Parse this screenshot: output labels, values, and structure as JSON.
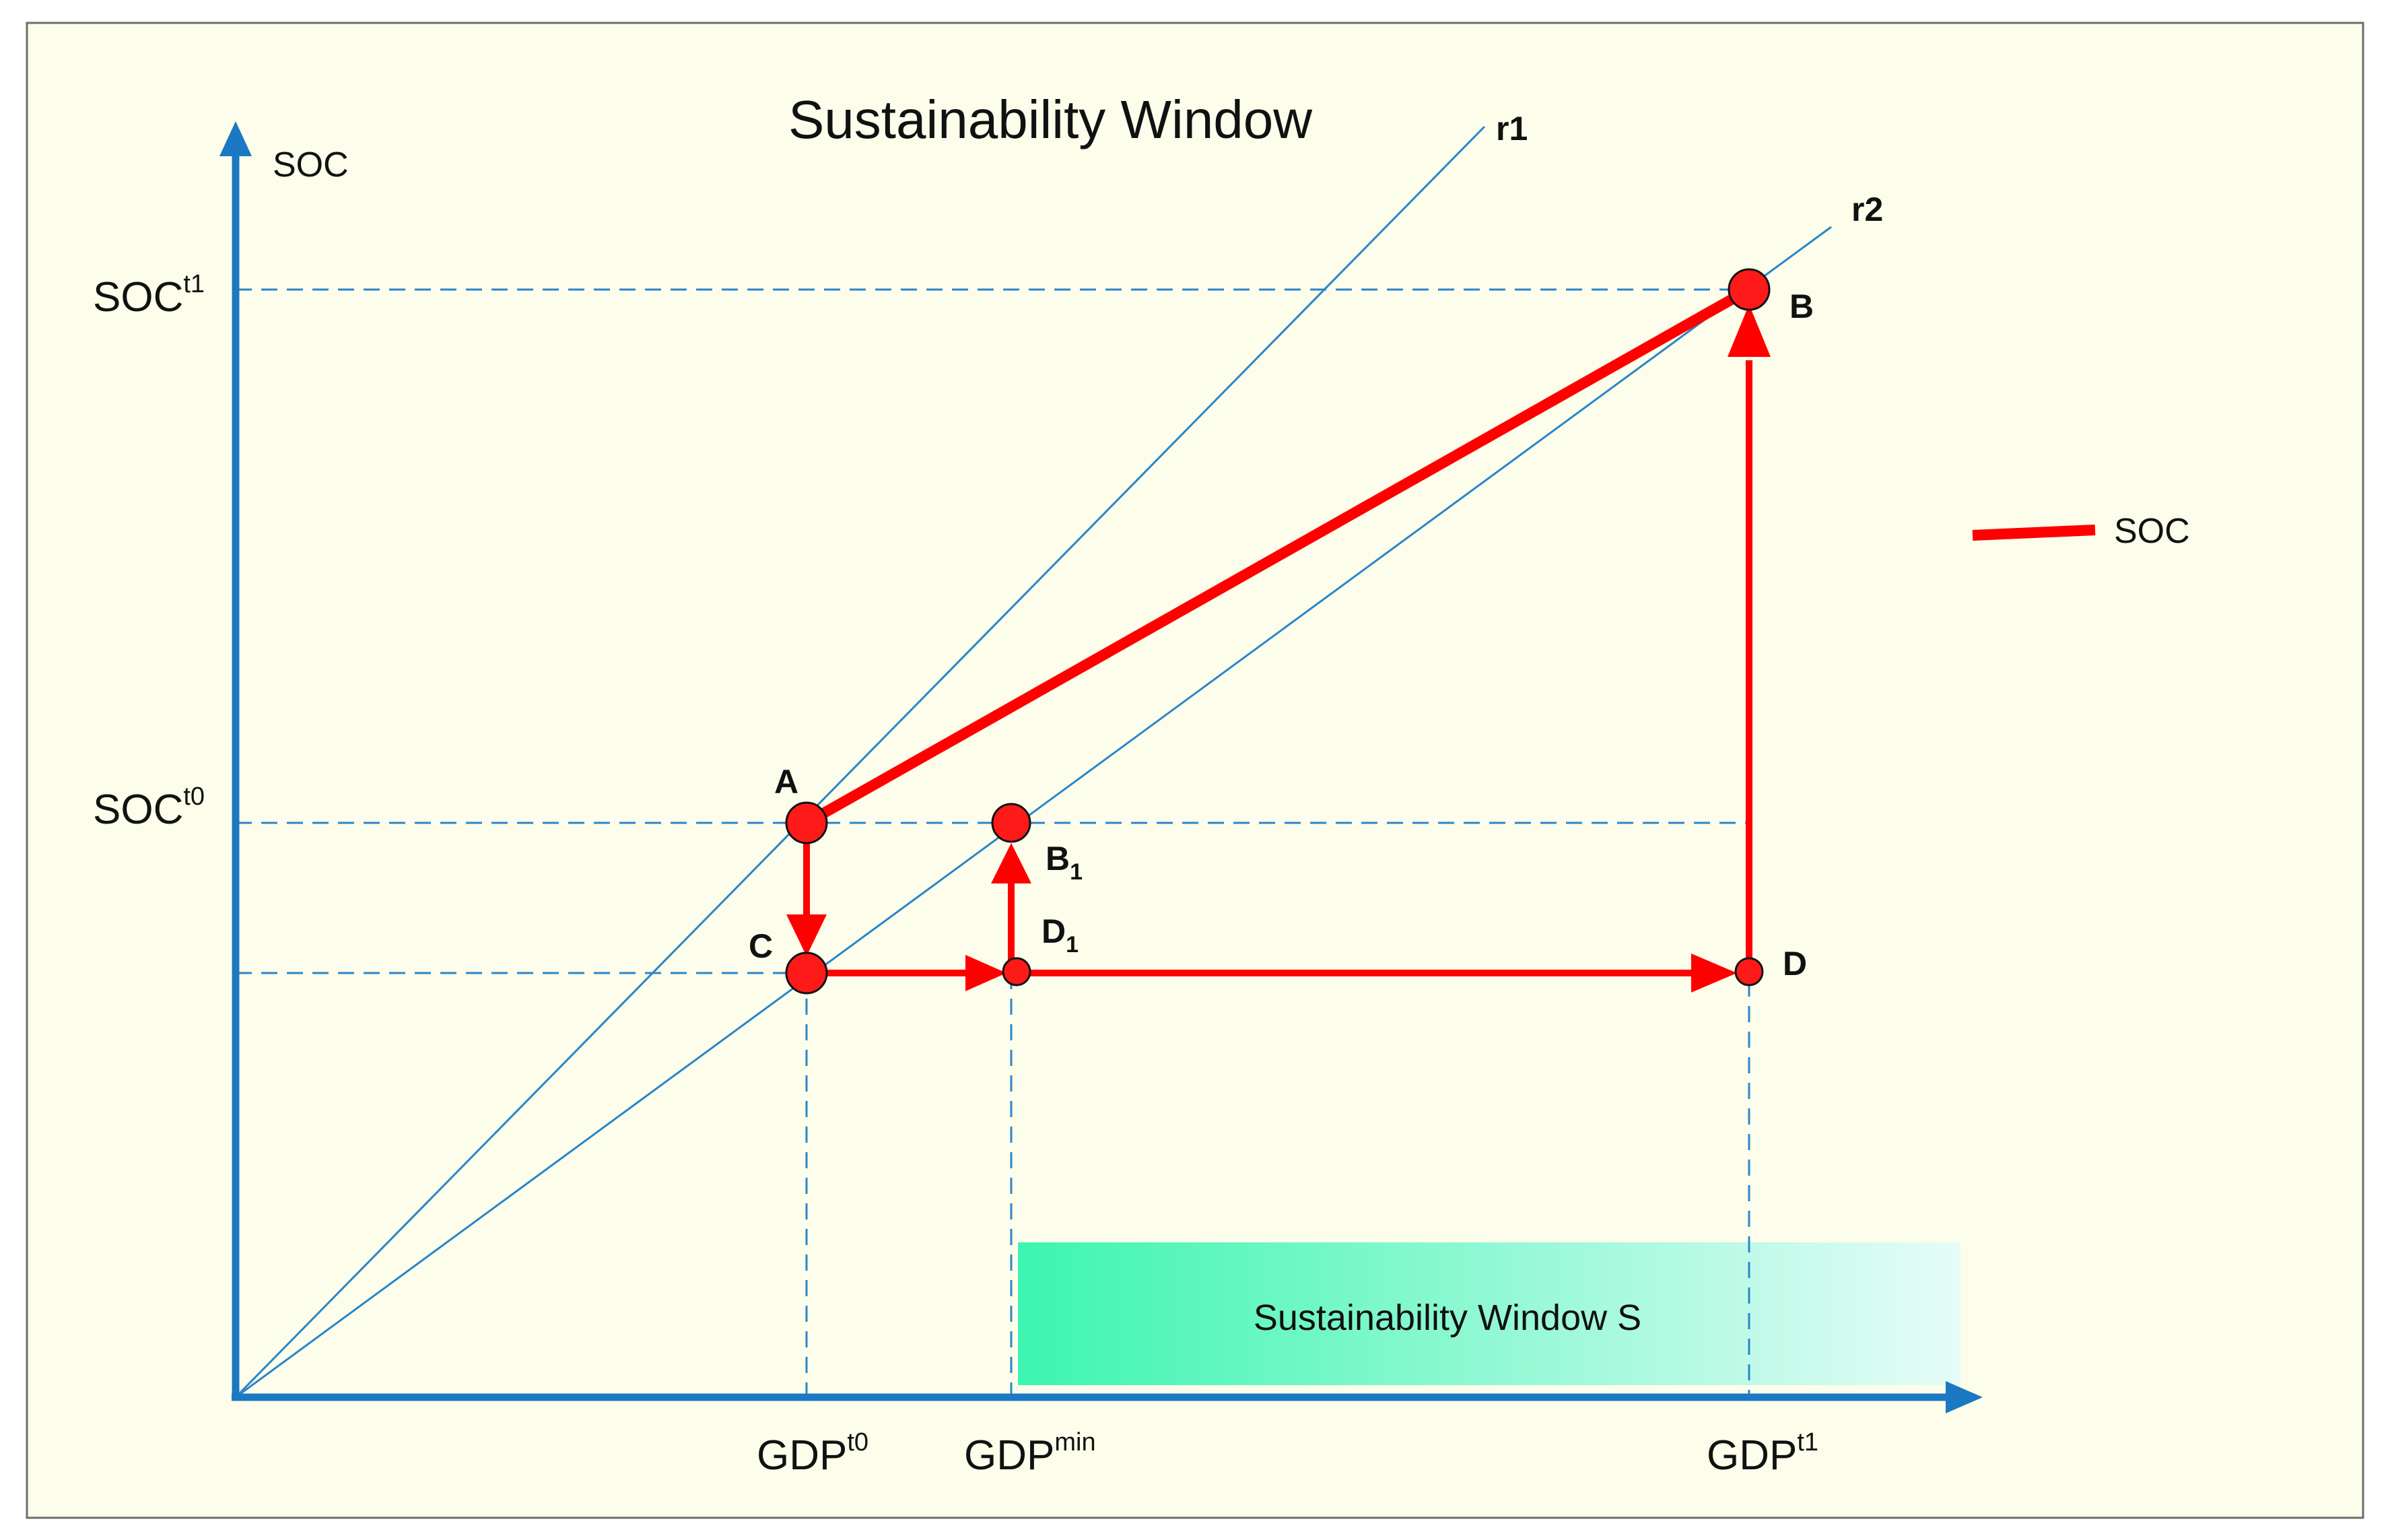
{
  "title": "Sustainability Window",
  "axes": {
    "y_label": "SOC",
    "y_ticks": [
      {
        "base": "SOC",
        "sup": "t1"
      },
      {
        "base": "SOC",
        "sup": "t0"
      }
    ],
    "x_ticks": [
      {
        "base": "GDP",
        "sup": "t0"
      },
      {
        "base": "GDP",
        "sup": "min"
      },
      {
        "base": "GDP",
        "sup": "t1"
      }
    ]
  },
  "rays": {
    "r1": "r1",
    "r2": "r2"
  },
  "points": {
    "A": {
      "name": "A",
      "sub": ""
    },
    "B": {
      "name": "B",
      "sub": ""
    },
    "B1": {
      "name": "B",
      "sub": "1"
    },
    "C": {
      "name": "C",
      "sub": ""
    },
    "D": {
      "name": "D",
      "sub": ""
    },
    "D1": {
      "name": "D",
      "sub": "1"
    }
  },
  "window_label": "Sustainability Window S",
  "legend": {
    "label": "SOC"
  },
  "colors": {
    "background": "#fdfdeb",
    "axis": "#1b78c2",
    "ray": "#2a86c9",
    "dashed": "#2a86c9",
    "path": "#ff0000",
    "point_fill": "#ff1a1a",
    "window_start": "#3cf5b0",
    "window_end": "#e6fcf8"
  }
}
